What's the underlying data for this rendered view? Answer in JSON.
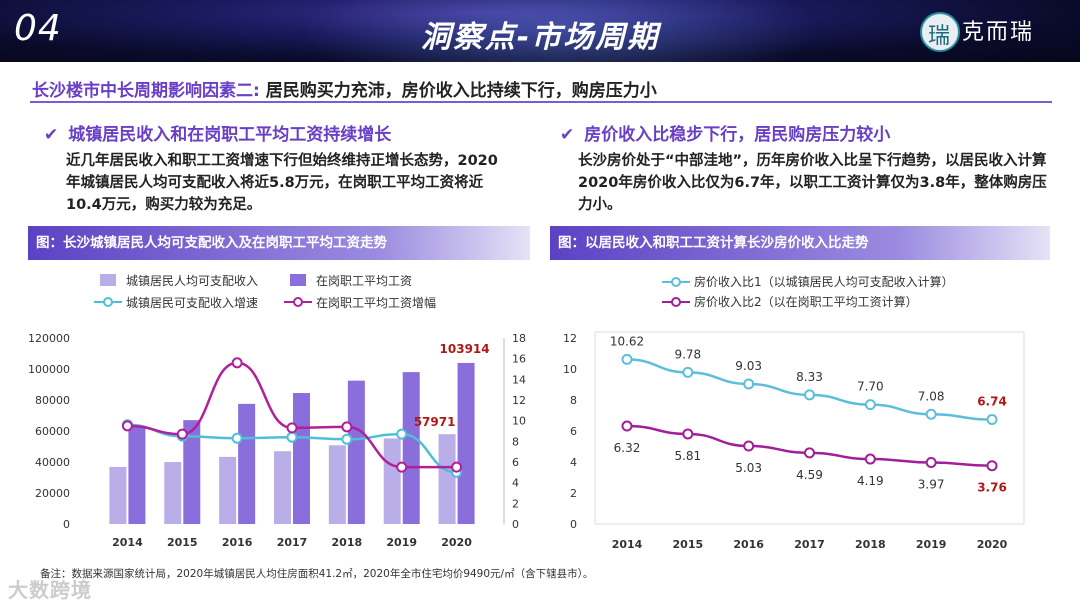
{
  "header": {
    "number": "04",
    "title": "洞察点-市场周期",
    "logo_char": "瑞",
    "brand": "克而瑞"
  },
  "subtitle": {
    "prefix": "长沙楼市中长周期影响因素二:",
    "text": "居民购买力充沛，房价收入比持续下行，购房压力小"
  },
  "left": {
    "heading": "城镇居民收入和在岗职工平均工资持续增长",
    "paragraph": "近几年居民收入和职工工资增速下行但始终维持正增长态势，2020年城镇居民人均可支配收入将近5.8万元，在岗职工平均工资将近10.4万元，购买力较为充足。",
    "figure_title": "图：长沙城镇居民人均可支配收入及在岗职工平均工资走势"
  },
  "right": {
    "heading": "房价收入比稳步下行，居民购房压力较小",
    "paragraph": "长沙房价处于“中部洼地”，历年房价收入比呈下行趋势，以居民收入计算2020年房价收入比仅为6.7年，以职工工资计算仅为3.8年，整体购房压力小。",
    "figure_title": "图：以居民收入和职工工资计算长沙房价收入比走势"
  },
  "chart_data": [
    {
      "type": "bar",
      "title": "长沙城镇居民人均可支配收入及在岗职工平均工资走势",
      "categories": [
        "2014",
        "2015",
        "2016",
        "2017",
        "2018",
        "2019",
        "2020"
      ],
      "series": [
        {
          "name": "城镇居民人均可支配收入",
          "type": "bar",
          "axis": "left",
          "values": [
            36826,
            39961,
            43294,
            46948,
            50792,
            55211,
            57971
          ],
          "color": "#b9aee8"
        },
        {
          "name": "在岗职工平均工资",
          "type": "bar",
          "axis": "left",
          "values": [
            63000,
            67000,
            77500,
            84500,
            92500,
            98000,
            103914
          ],
          "color": "#8a6fdc"
        },
        {
          "name": "城镇居民可支配收入增速",
          "type": "line",
          "axis": "right",
          "values": [
            9.6,
            8.5,
            8.3,
            8.4,
            8.2,
            8.7,
            5.0
          ],
          "color": "#4fbfd8"
        },
        {
          "name": "在岗职工平均工资增幅",
          "type": "line",
          "axis": "right",
          "values": [
            9.5,
            8.7,
            15.6,
            9.3,
            9.4,
            5.5,
            5.5
          ],
          "color": "#b0209a"
        }
      ],
      "ylim_left": [
        0,
        120000
      ],
      "yticks_left": [
        "0",
        "20000",
        "40000",
        "60000",
        "80000",
        "100000",
        "120000"
      ],
      "ylim_right": [
        0,
        18
      ],
      "yticks_right": [
        "0",
        "2",
        "4",
        "6",
        "8",
        "10",
        "12",
        "14",
        "16",
        "18"
      ],
      "annotations": [
        {
          "label": "103914"
        },
        {
          "label": "57971"
        }
      ]
    },
    {
      "type": "line",
      "title": "以居民收入和职工工资计算长沙房价收入比走势",
      "x": [
        "2014",
        "2015",
        "2016",
        "2017",
        "2018",
        "2019",
        "2020"
      ],
      "series": [
        {
          "name": "房价收入比1（以城镇居民人均可支配收入计算）",
          "values": [
            10.62,
            9.78,
            9.03,
            8.33,
            7.7,
            7.08,
            6.74
          ],
          "labels": [
            "10.62",
            "9.78",
            "9.03",
            "8.33",
            "7.70",
            "7.08",
            "6.74"
          ],
          "color": "#5bbfdc"
        },
        {
          "name": "房价收入比2（以在岗职工平均工资计算）",
          "values": [
            6.32,
            5.81,
            5.03,
            4.59,
            4.19,
            3.97,
            3.76
          ],
          "labels": [
            "6.32",
            "5.81",
            "5.03",
            "4.59",
            "4.19",
            "3.97",
            "3.76"
          ],
          "color": "#a0209a"
        }
      ],
      "ylim": [
        0,
        12
      ],
      "yticks": [
        "0",
        "2",
        "4",
        "6",
        "8",
        "10",
        "12"
      ]
    }
  ],
  "note": "备注：数据来源国家统计局，2020年城镇居民人均住房面积41.2㎡，2020年全市住宅均价9490元/㎡（含下辖县市）。",
  "watermark": "大数跨境"
}
